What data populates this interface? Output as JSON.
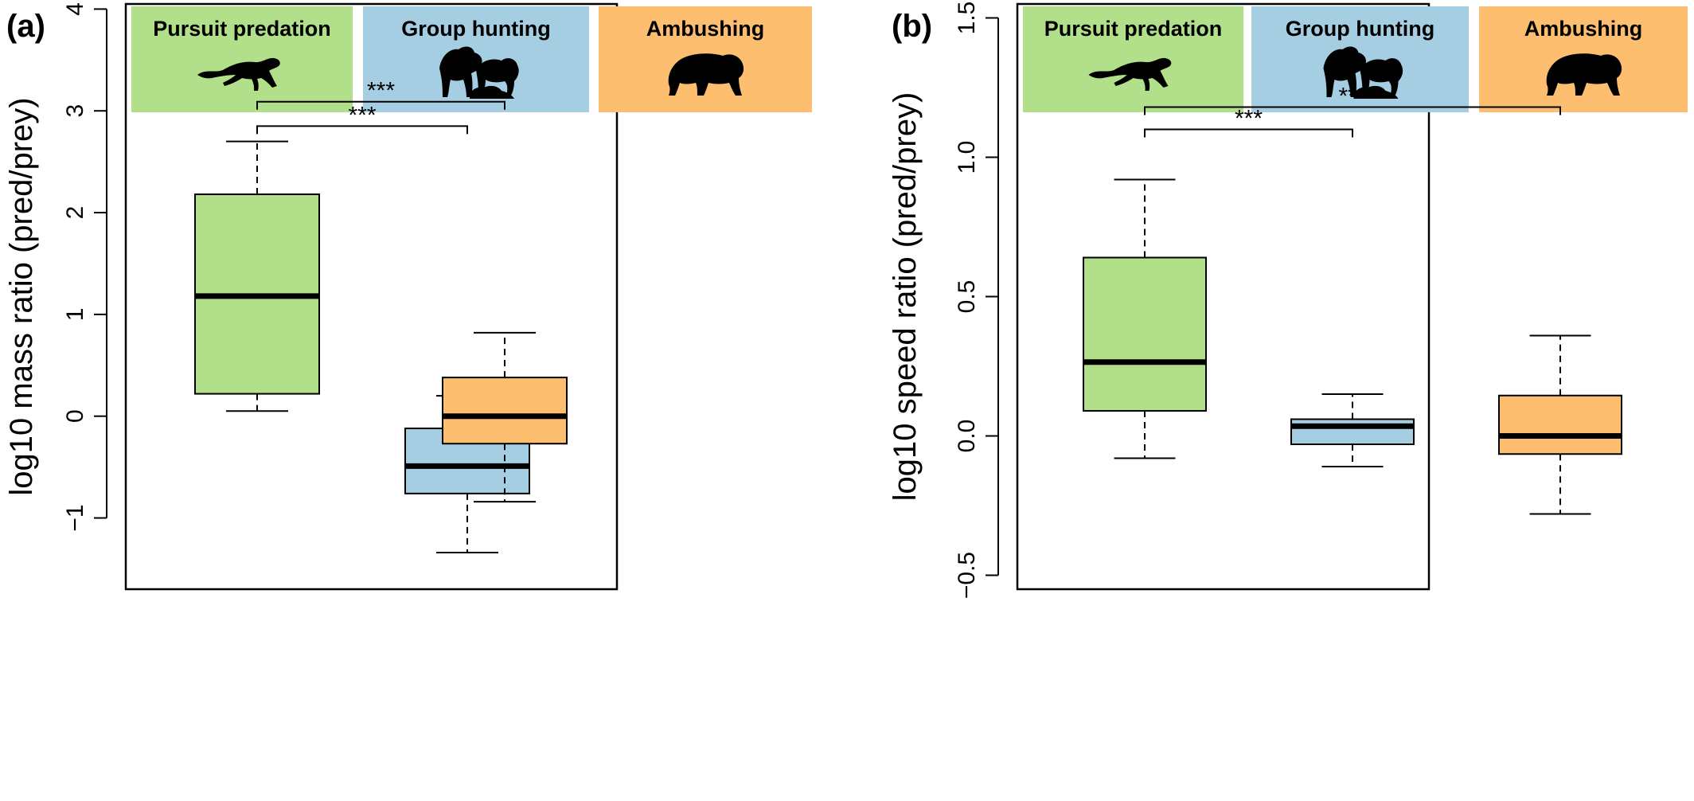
{
  "chart_data": [
    {
      "type": "box",
      "panel_label": "(a)",
      "ylabel": "log10 mass ratio (pred/prey)",
      "ylim": [
        -1.7,
        4.05
      ],
      "yticks": [
        -1,
        0,
        1,
        2,
        3,
        4
      ],
      "yticklabels": [
        "−1",
        "0",
        "1",
        "2",
        "3",
        "4"
      ],
      "grid": false,
      "categories": [
        "Pursuit predation",
        "Group hunting",
        "Ambushing"
      ],
      "colors": [
        "#b2df8a",
        "#a6cee3",
        "#fdbf6f"
      ],
      "icons": [
        "running-cheetah-icon",
        "lion-pride-icon",
        "crouching-leopard-icon"
      ],
      "boxes": [
        {
          "whisker_low": 0.05,
          "q1": 0.22,
          "median": 1.18,
          "q3": 2.18,
          "whisker_high": 2.7
        },
        {
          "whisker_low": -1.34,
          "q1": -0.76,
          "median": -0.49,
          "q3": -0.12,
          "whisker_high": 0.2
        },
        {
          "whisker_low": -0.84,
          "q1": -0.27,
          "median": 0.0,
          "q3": 0.38,
          "whisker_high": 0.82
        }
      ],
      "comparisons": [
        {
          "from": 0,
          "to": 1,
          "label": "***",
          "y": 2.85
        },
        {
          "from": 0,
          "to": 2,
          "label": "***",
          "y": 3.09
        }
      ]
    },
    {
      "type": "box",
      "panel_label": "(b)",
      "ylabel": "log10 speed ratio (pred/prey)",
      "ylim": [
        -0.55,
        1.55
      ],
      "yticks": [
        -0.5,
        0.0,
        0.5,
        1.0,
        1.5
      ],
      "yticklabels": [
        "−0.5",
        "0.0",
        "0.5",
        "1.0",
        "1.5"
      ],
      "grid": false,
      "categories": [
        "Pursuit predation",
        "Group hunting",
        "Ambushing"
      ],
      "colors": [
        "#b2df8a",
        "#a6cee3",
        "#fdbf6f"
      ],
      "icons": [
        "running-cheetah-icon",
        "lion-pride-icon",
        "crouching-leopard-icon"
      ],
      "boxes": [
        {
          "whisker_low": -0.08,
          "q1": 0.09,
          "median": 0.265,
          "q3": 0.64,
          "whisker_high": 0.92
        },
        {
          "whisker_low": -0.11,
          "q1": -0.03,
          "median": 0.035,
          "q3": 0.06,
          "whisker_high": 0.15
        },
        {
          "whisker_low": -0.28,
          "q1": -0.065,
          "median": 0.0,
          "q3": 0.145,
          "whisker_high": 0.36
        }
      ],
      "comparisons": [
        {
          "from": 0,
          "to": 1,
          "label": "***",
          "y": 1.1
        },
        {
          "from": 0,
          "to": 2,
          "label": "***",
          "y": 1.18
        }
      ]
    }
  ]
}
